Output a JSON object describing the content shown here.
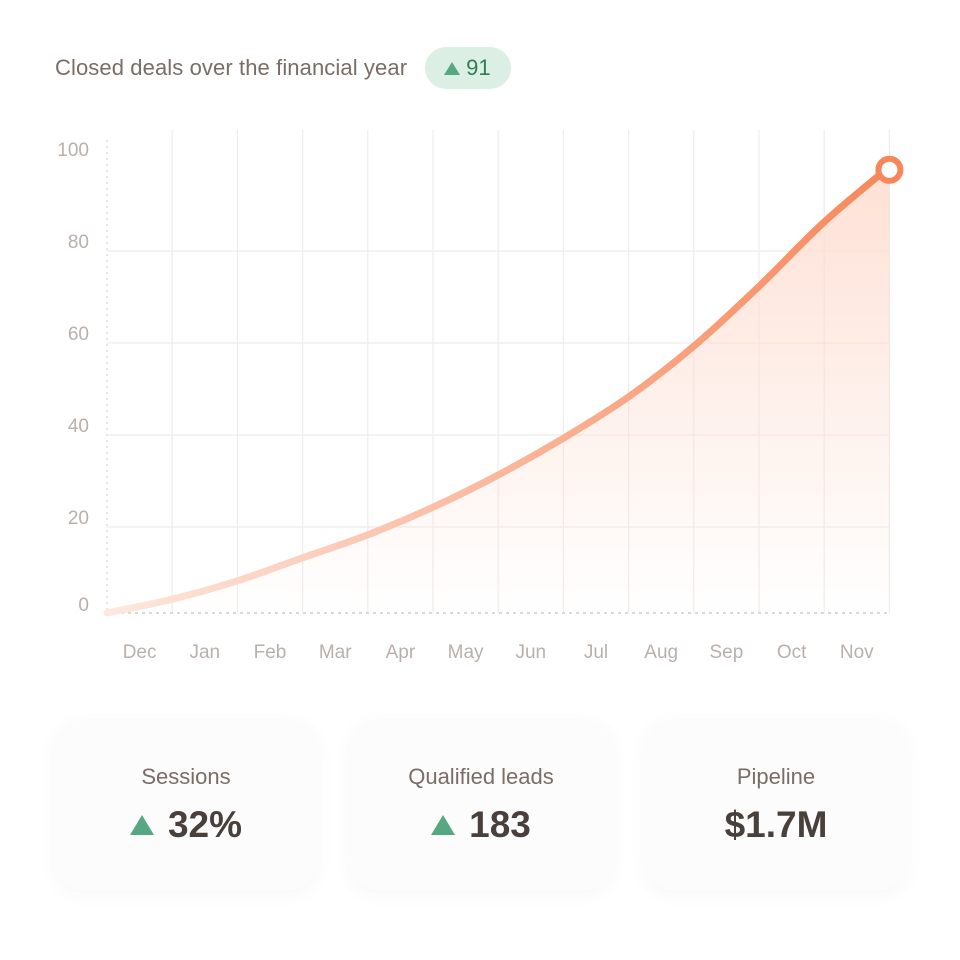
{
  "header": {
    "title": "Closed deals over the financial year",
    "badge_value": "91",
    "badge_icon": "triangle-up-icon"
  },
  "colors": {
    "line_start": "#fde8df",
    "line_end": "#f7875a",
    "area_fill": "#fdddd0",
    "positive": "#55a882",
    "badge_bg": "#dcefe4"
  },
  "chart_data": {
    "type": "area",
    "title": "Closed deals over the financial year",
    "xlabel": "",
    "ylabel": "",
    "categories": [
      "Dec",
      "Jan",
      "Feb",
      "Mar",
      "Apr",
      "May",
      "Jun",
      "Jul",
      "Aug",
      "Sep",
      "Oct",
      "Nov"
    ],
    "x": [
      0,
      1,
      2,
      3,
      4,
      5,
      6,
      7,
      8,
      9,
      10,
      11,
      12
    ],
    "values": [
      0,
      3,
      7,
      12,
      17,
      23,
      30,
      38,
      47,
      58,
      71,
      85,
      97
    ],
    "ylim": [
      0,
      100
    ],
    "yticks": [
      "0",
      "20",
      "40",
      "60",
      "80",
      "100"
    ],
    "grid": true,
    "endpoint_marker": true
  },
  "stats": [
    {
      "label": "Sessions",
      "value": "32%",
      "trend_icon": "triangle-up-icon"
    },
    {
      "label": "Qualified leads",
      "value": "183",
      "trend_icon": "triangle-up-icon"
    },
    {
      "label": "Pipeline",
      "value": "$1.7M",
      "trend_icon": ""
    }
  ]
}
